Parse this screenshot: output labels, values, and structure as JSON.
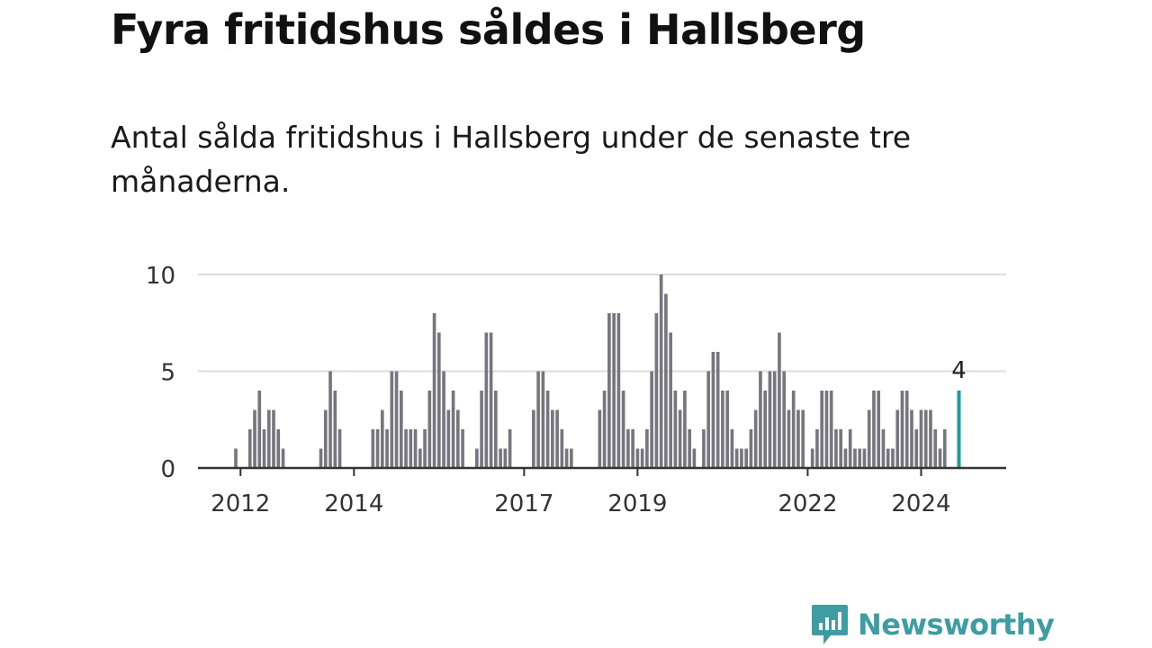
{
  "title": "Fyra fritidshus såldes i Hallsberg",
  "subtitle": "Antal sålda fritidshus i Hallsberg under de senaste tre månaderna.",
  "brand": {
    "name": "Newsworthy",
    "color": "#3d9da3"
  },
  "colors": {
    "bar": "#77767f",
    "highlight": "#1a9c9a",
    "grid": "#dddddd",
    "axis": "#333333"
  },
  "chart_data": {
    "type": "bar",
    "title": "Fyra fritidshus såldes i Hallsberg",
    "xlabel": "",
    "ylabel": "",
    "ylim": [
      0,
      10
    ],
    "yticks": [
      0,
      5,
      10
    ],
    "grid": true,
    "x_range": [
      "2011-04",
      "2025-07"
    ],
    "xticks": [
      {
        "label": "2012",
        "date": "2012-01"
      },
      {
        "label": "2014",
        "date": "2014-01"
      },
      {
        "label": "2017",
        "date": "2017-01"
      },
      {
        "label": "2019",
        "date": "2019-01"
      },
      {
        "label": "2022",
        "date": "2022-01"
      },
      {
        "label": "2024",
        "date": "2024-01"
      }
    ],
    "highlight": {
      "date": "2024-09",
      "value": 4,
      "label": "4"
    },
    "series": [
      {
        "points": [
          [
            "2011-12",
            1
          ],
          [
            "2012-03",
            2
          ],
          [
            "2012-04",
            3
          ],
          [
            "2012-05",
            4
          ],
          [
            "2012-06",
            2
          ],
          [
            "2012-07",
            3
          ],
          [
            "2012-08",
            3
          ],
          [
            "2012-09",
            2
          ],
          [
            "2012-10",
            1
          ],
          [
            "2013-06",
            1
          ],
          [
            "2013-07",
            3
          ],
          [
            "2013-08",
            5
          ],
          [
            "2013-09",
            4
          ],
          [
            "2013-10",
            2
          ],
          [
            "2014-05",
            2
          ],
          [
            "2014-06",
            2
          ],
          [
            "2014-07",
            3
          ],
          [
            "2014-08",
            2
          ],
          [
            "2014-09",
            5
          ],
          [
            "2014-10",
            5
          ],
          [
            "2014-11",
            4
          ],
          [
            "2014-12",
            2
          ],
          [
            "2015-01",
            2
          ],
          [
            "2015-02",
            2
          ],
          [
            "2015-03",
            1
          ],
          [
            "2015-04",
            2
          ],
          [
            "2015-05",
            4
          ],
          [
            "2015-06",
            8
          ],
          [
            "2015-07",
            7
          ],
          [
            "2015-08",
            5
          ],
          [
            "2015-09",
            3
          ],
          [
            "2015-10",
            4
          ],
          [
            "2015-11",
            3
          ],
          [
            "2015-12",
            2
          ],
          [
            "2016-03",
            1
          ],
          [
            "2016-04",
            4
          ],
          [
            "2016-05",
            7
          ],
          [
            "2016-06",
            7
          ],
          [
            "2016-07",
            4
          ],
          [
            "2016-08",
            1
          ],
          [
            "2016-09",
            1
          ],
          [
            "2016-10",
            2
          ],
          [
            "2017-03",
            3
          ],
          [
            "2017-04",
            5
          ],
          [
            "2017-05",
            5
          ],
          [
            "2017-06",
            4
          ],
          [
            "2017-07",
            3
          ],
          [
            "2017-08",
            3
          ],
          [
            "2017-09",
            2
          ],
          [
            "2017-10",
            1
          ],
          [
            "2017-11",
            1
          ],
          [
            "2018-05",
            3
          ],
          [
            "2018-06",
            4
          ],
          [
            "2018-07",
            8
          ],
          [
            "2018-08",
            8
          ],
          [
            "2018-09",
            8
          ],
          [
            "2018-10",
            4
          ],
          [
            "2018-11",
            2
          ],
          [
            "2018-12",
            2
          ],
          [
            "2019-01",
            1
          ],
          [
            "2019-02",
            1
          ],
          [
            "2019-03",
            2
          ],
          [
            "2019-04",
            5
          ],
          [
            "2019-05",
            8
          ],
          [
            "2019-06",
            10
          ],
          [
            "2019-07",
            9
          ],
          [
            "2019-08",
            7
          ],
          [
            "2019-09",
            4
          ],
          [
            "2019-10",
            3
          ],
          [
            "2019-11",
            4
          ],
          [
            "2019-12",
            2
          ],
          [
            "2020-01",
            1
          ],
          [
            "2020-03",
            2
          ],
          [
            "2020-04",
            5
          ],
          [
            "2020-05",
            6
          ],
          [
            "2020-06",
            6
          ],
          [
            "2020-07",
            4
          ],
          [
            "2020-08",
            4
          ],
          [
            "2020-09",
            2
          ],
          [
            "2020-10",
            1
          ],
          [
            "2020-11",
            1
          ],
          [
            "2020-12",
            1
          ],
          [
            "2021-01",
            2
          ],
          [
            "2021-02",
            3
          ],
          [
            "2021-03",
            5
          ],
          [
            "2021-04",
            4
          ],
          [
            "2021-05",
            5
          ],
          [
            "2021-06",
            5
          ],
          [
            "2021-07",
            7
          ],
          [
            "2021-08",
            5
          ],
          [
            "2021-09",
            3
          ],
          [
            "2021-10",
            4
          ],
          [
            "2021-11",
            3
          ],
          [
            "2021-12",
            3
          ],
          [
            "2022-02",
            1
          ],
          [
            "2022-03",
            2
          ],
          [
            "2022-04",
            4
          ],
          [
            "2022-05",
            4
          ],
          [
            "2022-06",
            4
          ],
          [
            "2022-07",
            2
          ],
          [
            "2022-08",
            2
          ],
          [
            "2022-09",
            1
          ],
          [
            "2022-10",
            2
          ],
          [
            "2022-11",
            1
          ],
          [
            "2022-12",
            1
          ],
          [
            "2023-01",
            1
          ],
          [
            "2023-02",
            3
          ],
          [
            "2023-03",
            4
          ],
          [
            "2023-04",
            4
          ],
          [
            "2023-05",
            2
          ],
          [
            "2023-06",
            1
          ],
          [
            "2023-07",
            1
          ],
          [
            "2023-08",
            3
          ],
          [
            "2023-09",
            4
          ],
          [
            "2023-10",
            4
          ],
          [
            "2023-11",
            3
          ],
          [
            "2023-12",
            2
          ],
          [
            "2024-01",
            3
          ],
          [
            "2024-02",
            3
          ],
          [
            "2024-03",
            3
          ],
          [
            "2024-04",
            2
          ],
          [
            "2024-05",
            1
          ],
          [
            "2024-06",
            2
          ],
          [
            "2024-09",
            4
          ]
        ]
      }
    ]
  }
}
